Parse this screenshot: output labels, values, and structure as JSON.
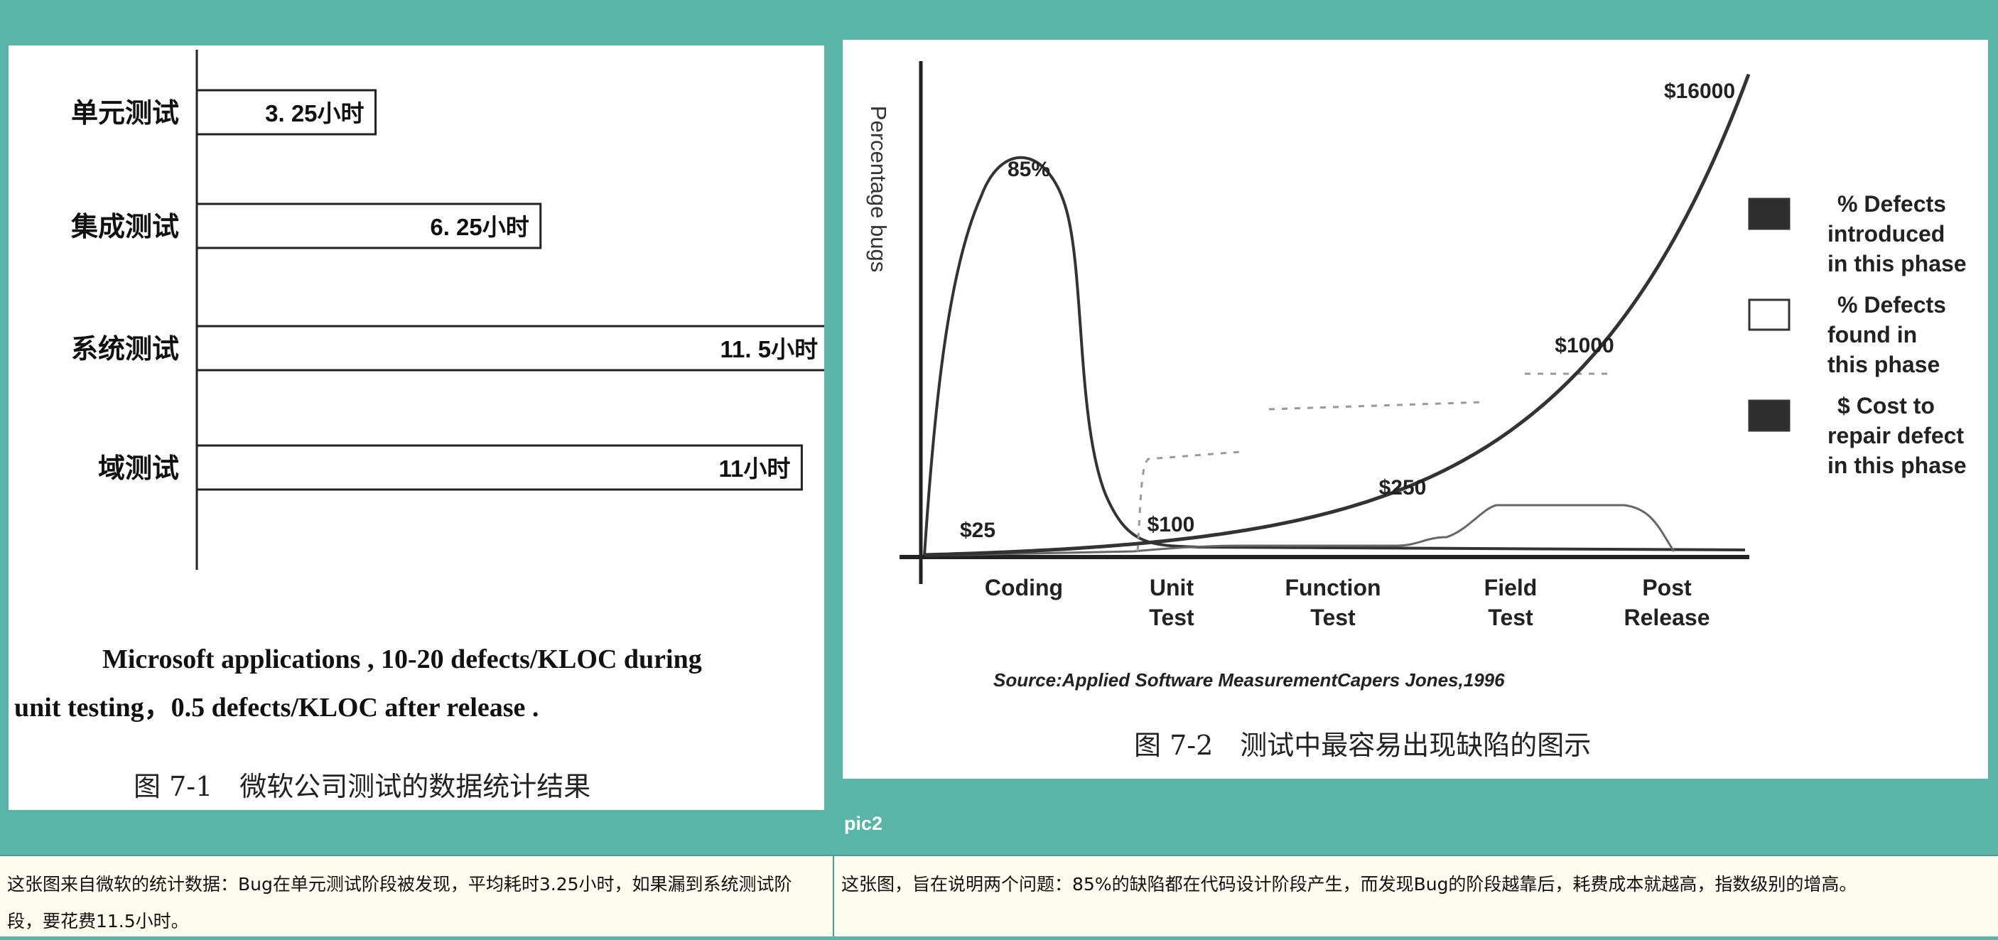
{
  "chart_data": [
    {
      "type": "bar",
      "orientation": "horizontal",
      "categories": [
        "单元测试",
        "集成测试",
        "系统测试",
        "域测试"
      ],
      "values": [
        3.25,
        6.25,
        11.5,
        11
      ],
      "value_labels": [
        "3. 25小时",
        "6. 25小时",
        "11. 5小时",
        "11小时"
      ],
      "note_line1": "Microsoft applications , 10-20 defects/KLOC during",
      "note_line2": "unit testing，0.5 defects/KLOC after release .",
      "caption": "图 7-1　微软公司测试的数据统计结果"
    },
    {
      "type": "line",
      "categories": [
        "Coding",
        "Unit Test",
        "Function Test",
        "Field Test",
        "Post Release"
      ],
      "ylabel": "Percentage bugs",
      "series": [
        {
          "name": "% Defects introduced in this phase",
          "peak_label": "85%",
          "values": [
            85,
            2,
            0,
            0,
            0
          ]
        },
        {
          "name": "% Defects found in this phase",
          "values": [
            0,
            25,
            35,
            45,
            10
          ]
        },
        {
          "name": "$ Cost to repair defect in this phase",
          "values": [
            25,
            100,
            250,
            1000,
            16000
          ],
          "labels": [
            "$25",
            "$100",
            "$250",
            "$1000",
            "$16000"
          ]
        }
      ],
      "legend_placement": "right",
      "legend": [
        {
          "lines": [
            "% Defects",
            "introduced",
            "in this phase"
          ],
          "color": "#2e2e2e"
        },
        {
          "lines": [
            "% Defects",
            "found in",
            "this phase"
          ],
          "color": "#ffffff"
        },
        {
          "lines": [
            "$ Cost to",
            "repair defect",
            "in this phase"
          ],
          "color": "#2e2e2e"
        }
      ],
      "source": "Source:Applied Software MeasurementCapers Jones,1996",
      "caption": "图 7-2　测试中最容易出现缺陷的图示"
    }
  ],
  "pic_label": "pic2",
  "captions": {
    "left": "这张图来自微软的统计数据：Bug在单元测试阶段被发现，平均耗时3.25小时，如果漏到系统测试阶段，要花费11.5小时。",
    "right": "这张图，旨在说明两个问题：85%的缺陷都在代码设计阶段产生，而发现Bug的阶段越靠后，耗费成本就越高，指数级别的增高。"
  }
}
